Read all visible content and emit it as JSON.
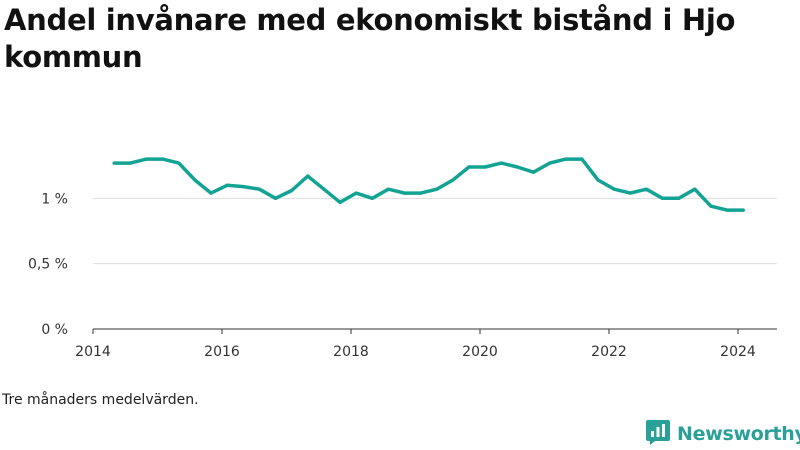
{
  "title": "Andel invånare med ekonomiskt bistånd i Hjo kommun",
  "caption": "Tre månaders medelvärden.",
  "brand": {
    "name": "Newsworthy",
    "icon": "newsworthy-logo-icon",
    "color": "#2aa198"
  },
  "colors": {
    "line": "#13a394",
    "grid": "#dddddd",
    "axis": "#333333",
    "text": "#111111"
  },
  "chart_data": {
    "type": "line",
    "title": "Andel invånare med ekonomiskt bistånd i Hjo kommun",
    "xlabel": "",
    "ylabel": "",
    "x_ticks": [
      2014,
      2016,
      2018,
      2020,
      2022,
      2024
    ],
    "y_ticks": [
      {
        "value": 0,
        "label": "0 %"
      },
      {
        "value": 0.5,
        "label": "0,5 %"
      },
      {
        "value": 1,
        "label": "1 %"
      }
    ],
    "xlim": [
      2014,
      2024.4
    ],
    "ylim": [
      0,
      1.5
    ],
    "grid": "horizontal",
    "series": [
      {
        "x": [
          2014.33,
          2014.58,
          2014.83,
          2015.08,
          2015.33,
          2015.58,
          2015.83,
          2016.08,
          2016.33,
          2016.58,
          2016.83,
          2017.08,
          2017.33,
          2017.58,
          2017.83,
          2018.08,
          2018.33,
          2018.58,
          2018.83,
          2019.08,
          2019.33,
          2019.58,
          2019.83,
          2020.08,
          2020.33,
          2020.58,
          2020.83,
          2021.08,
          2021.33,
          2021.58,
          2021.83,
          2022.08,
          2022.33,
          2022.58,
          2022.83,
          2023.08,
          2023.33,
          2023.58,
          2023.83,
          2024.08
        ],
        "y": [
          1.27,
          1.27,
          1.3,
          1.3,
          1.27,
          1.14,
          1.04,
          1.1,
          1.09,
          1.07,
          1.0,
          1.06,
          1.17,
          1.07,
          0.97,
          1.04,
          1.0,
          1.07,
          1.04,
          1.04,
          1.07,
          1.14,
          1.24,
          1.24,
          1.27,
          1.24,
          1.2,
          1.27,
          1.3,
          1.3,
          1.14,
          1.07,
          1.04,
          1.07,
          1.0,
          1.0,
          1.07,
          0.94,
          0.91,
          0.91
        ]
      }
    ]
  }
}
